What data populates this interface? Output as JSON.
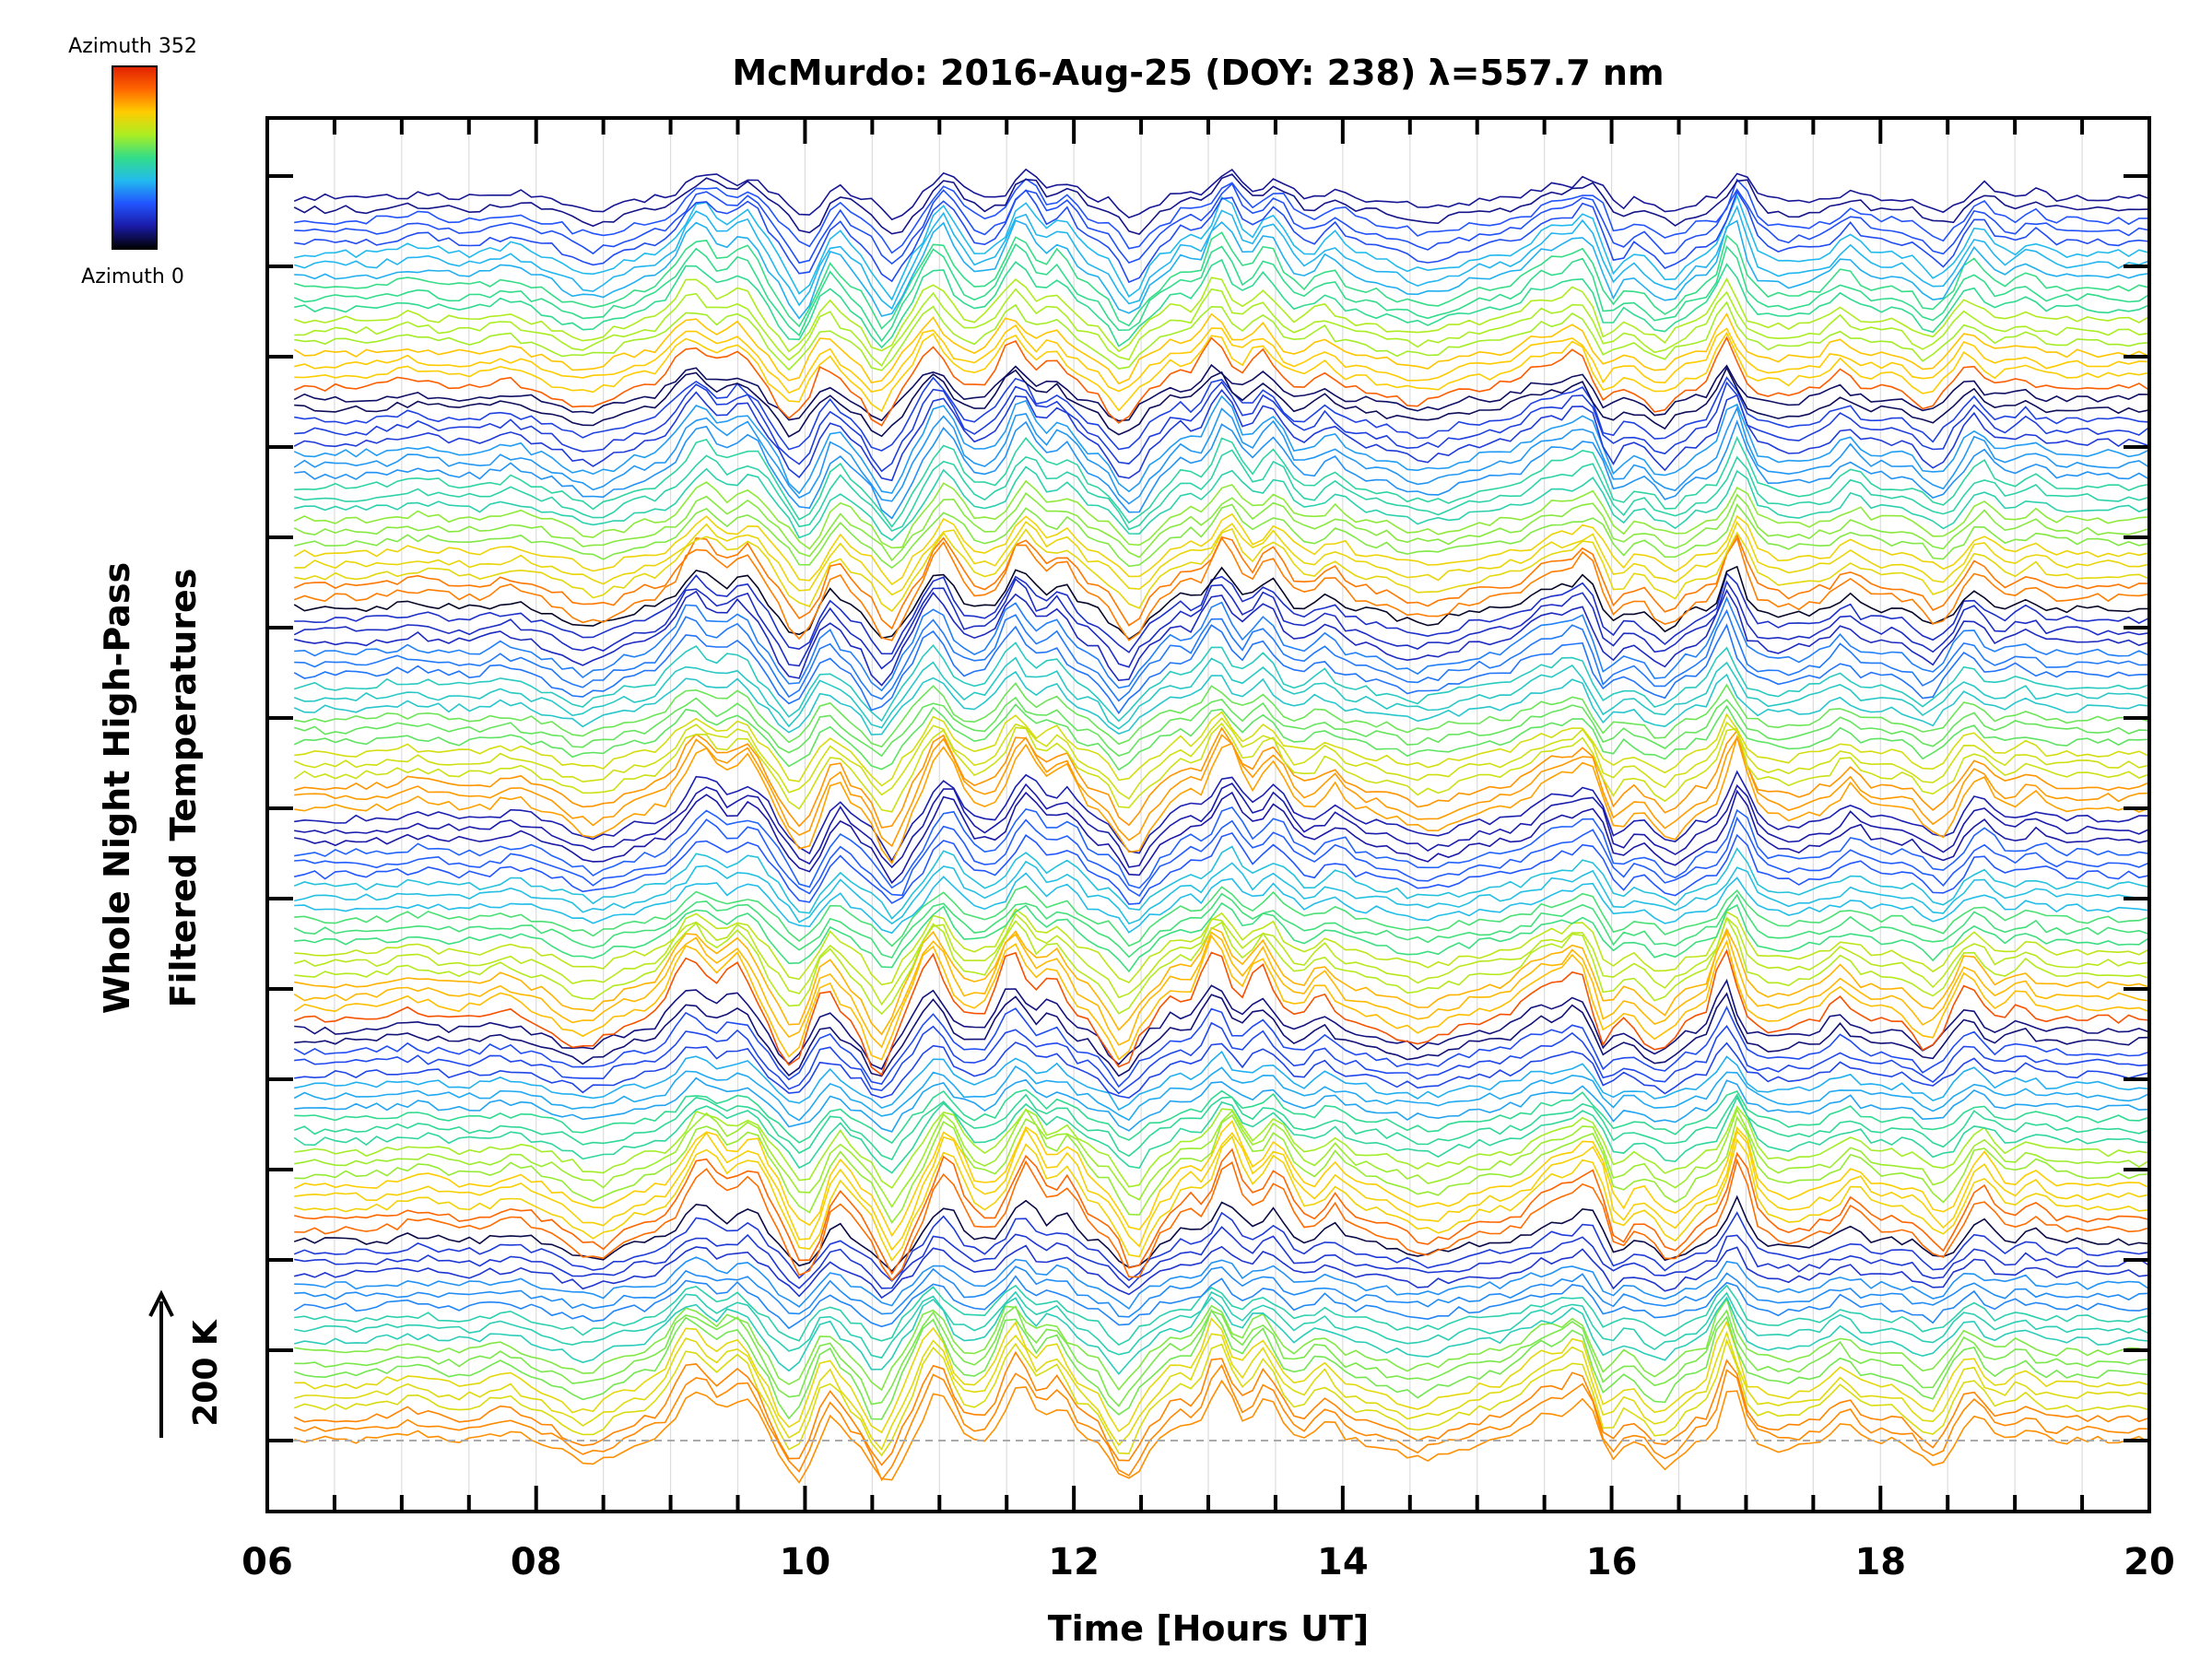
{
  "chart_data": {
    "type": "line",
    "title": "McMurdo: 2016-Aug-25 (DOY: 238) λ=557.7 nm",
    "xlabel": "Time [Hours UT]",
    "ylabel_line1": "Whole Night High-Pass",
    "ylabel_line2": "Filtered Temperatures",
    "xlim": [
      6,
      20
    ],
    "x_ticks": [
      6,
      8,
      10,
      12,
      14,
      16,
      18,
      20
    ],
    "x_tick_labels": [
      "06",
      "08",
      "10",
      "12",
      "14",
      "16",
      "18",
      "20"
    ],
    "x_start": 6.2,
    "x_end": 20,
    "n_traces": 113,
    "offset_per_trace_K": 20,
    "scale_bar_label": "200 K",
    "colorbar_top_label": "Azimuth 352",
    "colorbar_bottom_label": "Azimuth 0",
    "colorbar_range": [
      0,
      352
    ],
    "colormap": [
      "#000000",
      "#1a1aa8",
      "#2255ff",
      "#22bbee",
      "#33dd88",
      "#aaee22",
      "#ffcc00",
      "#ff6600",
      "#e02000"
    ],
    "groups": 6,
    "common_peaks_hours": [
      9.2,
      9.6,
      10.2,
      11.0,
      11.6,
      11.9,
      12.8,
      13.1,
      13.4,
      13.9,
      15.6,
      15.8,
      16.9,
      17.8,
      18.7
    ],
    "common_troughs_hours": [
      8.4,
      9.9,
      10.6,
      12.4,
      14.6,
      16.0,
      16.4,
      18.4
    ]
  }
}
